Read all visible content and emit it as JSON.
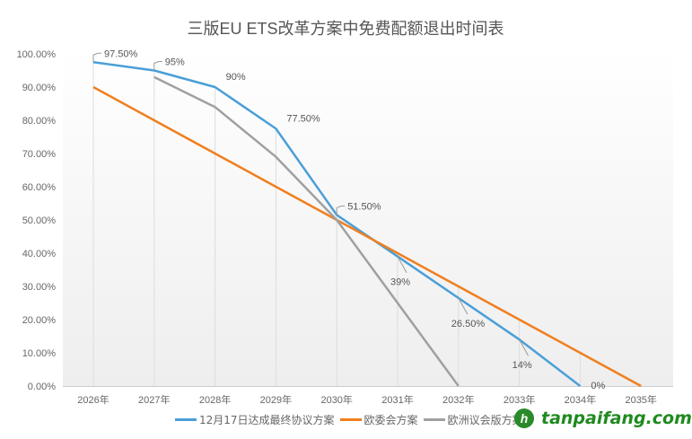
{
  "chart_data": {
    "type": "line",
    "title": "三版EU ETS改革方案中免费配额退出时间表",
    "categories": [
      "2026年",
      "2027年",
      "2028年",
      "2029年",
      "2030年",
      "2031年",
      "2032年",
      "2033年",
      "2034年",
      "2035年"
    ],
    "ylim": [
      0,
      100
    ],
    "yticks": [
      "0.00%",
      "10.00%",
      "20.00%",
      "30.00%",
      "40.00%",
      "50.00%",
      "60.00%",
      "70.00%",
      "80.00%",
      "90.00%",
      "100.00%"
    ],
    "grid": "vertical drop lines",
    "legend": "bottom",
    "series": [
      {
        "name": "12月17日达成最终协议方案",
        "color": "#4a9fd8",
        "values": [
          97.5,
          95,
          90,
          77.5,
          51.5,
          39,
          26.5,
          14,
          0,
          null
        ],
        "labels": [
          "97.50%",
          "95%",
          "90%",
          "77.50%",
          "51.50%",
          "39%",
          "26.50%",
          "14%",
          "0%",
          null
        ]
      },
      {
        "name": "欧委会方案",
        "color": "#f07f1f",
        "values": [
          90,
          80,
          70,
          60,
          50,
          40,
          30,
          20,
          10,
          0
        ]
      },
      {
        "name": "欧洲议会版方案",
        "color": "#a0a0a0",
        "values": [
          null,
          93,
          84,
          69,
          50,
          25,
          0,
          null,
          null,
          null
        ]
      }
    ]
  },
  "watermark": {
    "text": "tanpaifang.com",
    "icon": "tanpaifang-logo-icon"
  }
}
